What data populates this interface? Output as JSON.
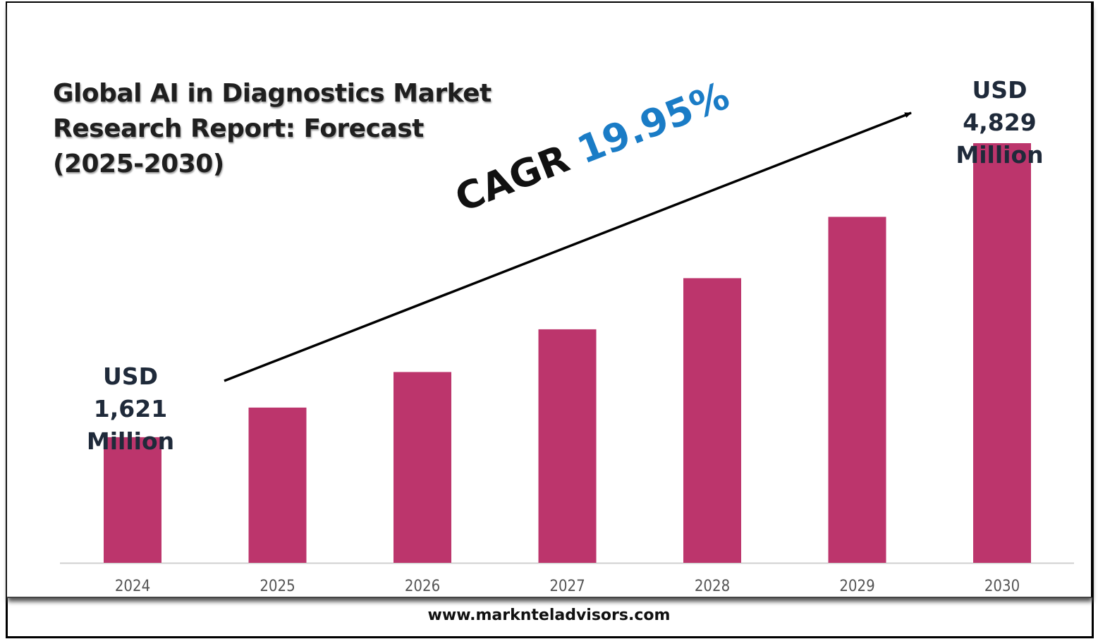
{
  "chart_data": {
    "type": "bar",
    "title": "Global AI in Diagnostics Market Research Report: Forecast (2025-2030)",
    "title_lines": [
      "Global AI in Diagnostics Market",
      "Research Report: Forecast",
      "(2025-2030)"
    ],
    "categories": [
      "2024",
      "2025",
      "2026",
      "2027",
      "2028",
      "2029",
      "2030"
    ],
    "values": [
      1621,
      1944,
      2332,
      2798,
      3356,
      4025,
      4829
    ],
    "ylim": [
      250,
      4829
    ],
    "xlabel": "",
    "ylabel": "USD Million",
    "bar_color": "#bc356c",
    "grid": false,
    "annotations": {
      "start": {
        "prefix": "USD",
        "value": "1,621",
        "unit": "Million"
      },
      "end": {
        "prefix": "USD",
        "value": "4,829",
        "unit": "Million"
      },
      "cagr_label": "CAGR",
      "cagr_value": "19.95%"
    }
  },
  "footer": {
    "website": "www.marknteladvisors.com"
  }
}
